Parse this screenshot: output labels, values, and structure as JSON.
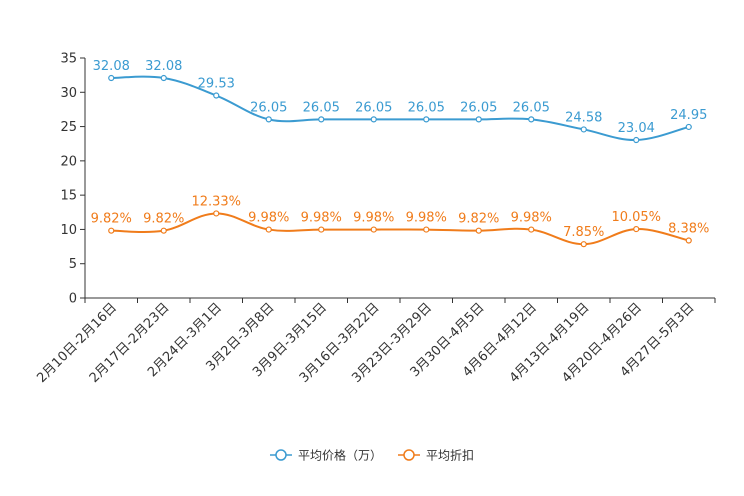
{
  "chart_data": {
    "type": "line",
    "title": "",
    "xlabel": "",
    "ylabel": "",
    "ylim": [
      0,
      35
    ],
    "yticks": [
      0,
      5,
      10,
      15,
      20,
      25,
      30,
      35
    ],
    "grid": false,
    "legend_position": "bottom-center",
    "categories": [
      "2月10日-2月16日",
      "2月17日-2月23日",
      "2月24日-3月1日",
      "3月2日-3月8日",
      "3月9日-3月15日",
      "3月16日-3月22日",
      "3月23日-3月29日",
      "3月30日-4月5日",
      "4月6日-4月12日",
      "4月13日-4月19日",
      "4月20日-4月26日",
      "4月27日-5月3日"
    ],
    "series": [
      {
        "name": "平均价格（万）",
        "color": "#3b9bd1",
        "values": [
          32.08,
          32.08,
          29.53,
          26.05,
          26.05,
          26.05,
          26.05,
          26.05,
          26.05,
          24.58,
          23.04,
          24.95
        ],
        "labels": [
          "32.08",
          "32.08",
          "29.53",
          "26.05",
          "26.05",
          "26.05",
          "26.05",
          "26.05",
          "26.05",
          "24.58",
          "23.04",
          "24.95"
        ]
      },
      {
        "name": "平均折扣",
        "color": "#f07c1b",
        "values": [
          9.82,
          9.82,
          12.33,
          9.98,
          9.98,
          9.98,
          9.98,
          9.82,
          9.98,
          7.85,
          10.05,
          8.38
        ],
        "labels": [
          "9.82%",
          "9.82%",
          "12.33%",
          "9.98%",
          "9.98%",
          "9.98%",
          "9.98%",
          "9.82%",
          "9.98%",
          "7.85%",
          "10.05%",
          "8.38%"
        ]
      }
    ]
  }
}
